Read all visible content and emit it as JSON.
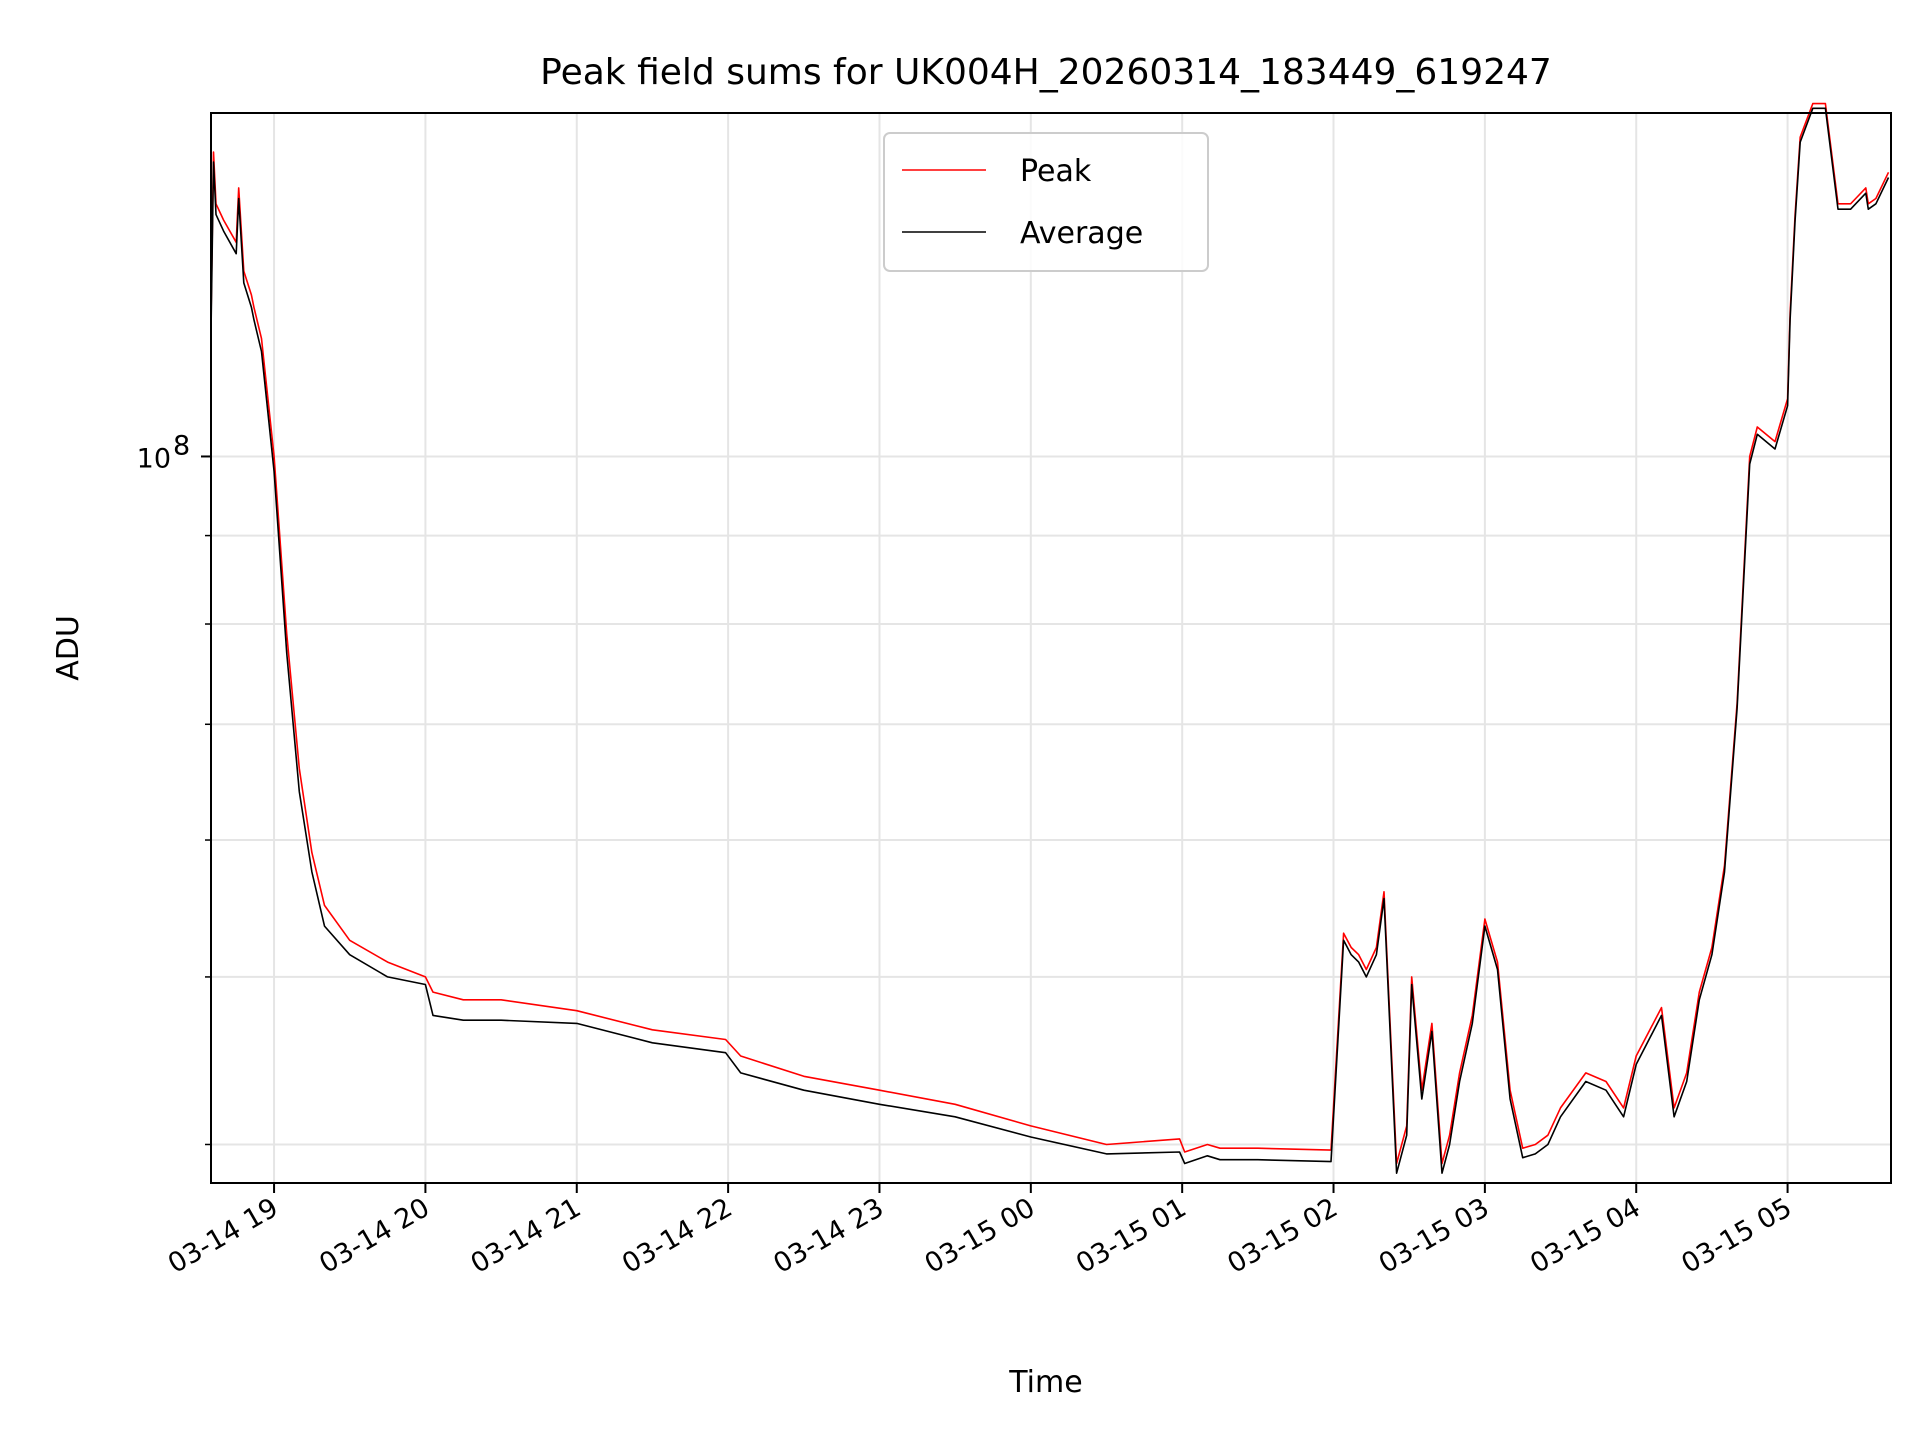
{
  "chart_data": {
    "type": "line",
    "title": "Peak field sums for UK004H_20260314_183449_619247",
    "xlabel": "Time",
    "ylabel": "ADU",
    "y_scale": "log",
    "grid": true,
    "legend_position": "upper center",
    "xlim": [
      "2026-03-14 18:35",
      "2026-03-15 05:41"
    ],
    "ylim": [
      38000000,
      158000000
    ],
    "x_ticks": [
      {
        "value": "2026-03-14 19:00",
        "label": "03-14 19"
      },
      {
        "value": "2026-03-14 20:00",
        "label": "03-14 20"
      },
      {
        "value": "2026-03-14 21:00",
        "label": "03-14 21"
      },
      {
        "value": "2026-03-14 22:00",
        "label": "03-14 22"
      },
      {
        "value": "2026-03-14 23:00",
        "label": "03-14 23"
      },
      {
        "value": "2026-03-15 00:00",
        "label": "03-15 00"
      },
      {
        "value": "2026-03-15 01:00",
        "label": "03-15 01"
      },
      {
        "value": "2026-03-15 02:00",
        "label": "03-15 02"
      },
      {
        "value": "2026-03-15 03:00",
        "label": "03-15 03"
      },
      {
        "value": "2026-03-15 04:00",
        "label": "03-15 04"
      },
      {
        "value": "2026-03-15 05:00",
        "label": "03-15 05"
      }
    ],
    "y_ticks_major": [
      {
        "value": 100000000,
        "label_base": "10",
        "label_exp": "8"
      }
    ],
    "y_ticks_minor": [
      40000000,
      50000000,
      60000000,
      70000000,
      80000000,
      90000000,
      200000000
    ],
    "series": [
      {
        "name": "Peak",
        "color": "#ff0000",
        "x": [
          "2026-03-14 18:35",
          "2026-03-14 18:36",
          "2026-03-14 18:37",
          "2026-03-14 18:40",
          "2026-03-14 18:45",
          "2026-03-14 18:46",
          "2026-03-14 18:48",
          "2026-03-14 18:51",
          "2026-03-14 18:52",
          "2026-03-14 18:55",
          "2026-03-14 19:00",
          "2026-03-14 19:05",
          "2026-03-14 19:10",
          "2026-03-14 19:15",
          "2026-03-14 19:20",
          "2026-03-14 19:30",
          "2026-03-14 19:45",
          "2026-03-14 20:00",
          "2026-03-14 20:03",
          "2026-03-14 20:15",
          "2026-03-14 20:30",
          "2026-03-14 21:00",
          "2026-03-14 21:30",
          "2026-03-14 21:59",
          "2026-03-14 22:05",
          "2026-03-14 22:30",
          "2026-03-14 23:00",
          "2026-03-14 23:30",
          "2026-03-15 00:00",
          "2026-03-15 00:30",
          "2026-03-15 00:59",
          "2026-03-15 01:01",
          "2026-03-15 01:10",
          "2026-03-15 01:15",
          "2026-03-15 01:30",
          "2026-03-15 01:59",
          "2026-03-15 02:04",
          "2026-03-15 02:07",
          "2026-03-15 02:10",
          "2026-03-15 02:13",
          "2026-03-15 02:17",
          "2026-03-15 02:20",
          "2026-03-15 02:25",
          "2026-03-15 02:29",
          "2026-03-15 02:31",
          "2026-03-15 02:35",
          "2026-03-15 02:39",
          "2026-03-15 02:43",
          "2026-03-15 02:46",
          "2026-03-15 02:50",
          "2026-03-15 02:55",
          "2026-03-15 03:00",
          "2026-03-15 03:05",
          "2026-03-15 03:10",
          "2026-03-15 03:15",
          "2026-03-15 03:20",
          "2026-03-15 03:25",
          "2026-03-15 03:30",
          "2026-03-15 03:40",
          "2026-03-15 03:48",
          "2026-03-15 03:55",
          "2026-03-15 04:00",
          "2026-03-15 04:10",
          "2026-03-15 04:15",
          "2026-03-15 04:20",
          "2026-03-15 04:25",
          "2026-03-15 04:30",
          "2026-03-15 04:35",
          "2026-03-15 04:40",
          "2026-03-15 04:45",
          "2026-03-15 04:48",
          "2026-03-15 04:55",
          "2026-03-15 05:00",
          "2026-03-15 05:01",
          "2026-03-15 05:03",
          "2026-03-15 05:05",
          "2026-03-15 05:10",
          "2026-03-15 05:15",
          "2026-03-15 05:20",
          "2026-03-15 05:25",
          "2026-03-15 05:27",
          "2026-03-15 05:31",
          "2026-03-15 05:32",
          "2026-03-15 05:35",
          "2026-03-15 05:40"
        ],
        "y": [
          120000000,
          150000000,
          140000000,
          137000000,
          133000000,
          143000000,
          128000000,
          124000000,
          122000000,
          117000000,
          100000000,
          79000000,
          66000000,
          59000000,
          55000000,
          52500000,
          51000000,
          50000000,
          49000000,
          48500000,
          48500000,
          47800000,
          46600000,
          46000000,
          45000000,
          43800000,
          43000000,
          42200000,
          41000000,
          40000000,
          40300000,
          39600000,
          40000000,
          39800000,
          39800000,
          39700000,
          53000000,
          52000000,
          51500000,
          50500000,
          52000000,
          56000000,
          39000000,
          41000000,
          50000000,
          43000000,
          47000000,
          39000000,
          40500000,
          44000000,
          47500000,
          54000000,
          51000000,
          43000000,
          39800000,
          40000000,
          40500000,
          42000000,
          44000000,
          43500000,
          42000000,
          45000000,
          48000000,
          42000000,
          44000000,
          49000000,
          52000000,
          58000000,
          72000000,
          100000000,
          104000000,
          102000000,
          108000000,
          121000000,
          138000000,
          153000000,
          160000000,
          160000000,
          140000000,
          140000000,
          141000000,
          143000000,
          140000000,
          141000000,
          146000000
        ]
      },
      {
        "name": "Average",
        "color": "#000000",
        "x": [
          "2026-03-14 18:35",
          "2026-03-14 18:36",
          "2026-03-14 18:37",
          "2026-03-14 18:40",
          "2026-03-14 18:45",
          "2026-03-14 18:46",
          "2026-03-14 18:48",
          "2026-03-14 18:51",
          "2026-03-14 18:52",
          "2026-03-14 18:55",
          "2026-03-14 19:00",
          "2026-03-14 19:05",
          "2026-03-14 19:10",
          "2026-03-14 19:15",
          "2026-03-14 19:20",
          "2026-03-14 19:30",
          "2026-03-14 19:45",
          "2026-03-14 20:00",
          "2026-03-14 20:03",
          "2026-03-14 20:15",
          "2026-03-14 20:30",
          "2026-03-14 21:00",
          "2026-03-14 21:30",
          "2026-03-14 21:59",
          "2026-03-14 22:05",
          "2026-03-14 22:30",
          "2026-03-14 23:00",
          "2026-03-14 23:30",
          "2026-03-15 00:00",
          "2026-03-15 00:30",
          "2026-03-15 00:59",
          "2026-03-15 01:01",
          "2026-03-15 01:10",
          "2026-03-15 01:15",
          "2026-03-15 01:30",
          "2026-03-15 01:59",
          "2026-03-15 02:04",
          "2026-03-15 02:07",
          "2026-03-15 02:10",
          "2026-03-15 02:13",
          "2026-03-15 02:17",
          "2026-03-15 02:20",
          "2026-03-15 02:25",
          "2026-03-15 02:29",
          "2026-03-15 02:31",
          "2026-03-15 02:35",
          "2026-03-15 02:39",
          "2026-03-15 02:43",
          "2026-03-15 02:46",
          "2026-03-15 02:50",
          "2026-03-15 02:55",
          "2026-03-15 03:00",
          "2026-03-15 03:05",
          "2026-03-15 03:10",
          "2026-03-15 03:15",
          "2026-03-15 03:20",
          "2026-03-15 03:25",
          "2026-03-15 03:30",
          "2026-03-15 03:40",
          "2026-03-15 03:48",
          "2026-03-15 03:55",
          "2026-03-15 04:00",
          "2026-03-15 04:10",
          "2026-03-15 04:15",
          "2026-03-15 04:20",
          "2026-03-15 04:25",
          "2026-03-15 04:30",
          "2026-03-15 04:35",
          "2026-03-15 04:40",
          "2026-03-15 04:45",
          "2026-03-15 04:48",
          "2026-03-15 04:55",
          "2026-03-15 05:00",
          "2026-03-15 05:01",
          "2026-03-15 05:03",
          "2026-03-15 05:05",
          "2026-03-15 05:10",
          "2026-03-15 05:15",
          "2026-03-15 05:20",
          "2026-03-15 05:25",
          "2026-03-15 05:27",
          "2026-03-15 05:31",
          "2026-03-15 05:32",
          "2026-03-15 05:35",
          "2026-03-15 05:40"
        ],
        "y": [
          118000000,
          148000000,
          138000000,
          135000000,
          131000000,
          141000000,
          126000000,
          122000000,
          120000000,
          115000000,
          98000000,
          77000000,
          64000000,
          57500000,
          53500000,
          51500000,
          50000000,
          49500000,
          47500000,
          47200000,
          47200000,
          47000000,
          45800000,
          45200000,
          44000000,
          43000000,
          42200000,
          41500000,
          40400000,
          39500000,
          39600000,
          39000000,
          39400000,
          39200000,
          39200000,
          39100000,
          52500000,
          51500000,
          51000000,
          50000000,
          51500000,
          55500000,
          38500000,
          40500000,
          49500000,
          42500000,
          46500000,
          38500000,
          40000000,
          43500000,
          47000000,
          53500000,
          50500000,
          42500000,
          39300000,
          39500000,
          40000000,
          41500000,
          43500000,
          43000000,
          41500000,
          44500000,
          47500000,
          41500000,
          43500000,
          48500000,
          51500000,
          57500000,
          71500000,
          99000000,
          103000000,
          101000000,
          107000000,
          120000000,
          137000000,
          152000000,
          159000000,
          159000000,
          139000000,
          139000000,
          140000000,
          142000000,
          139000000,
          140000000,
          145000000
        ]
      }
    ]
  }
}
